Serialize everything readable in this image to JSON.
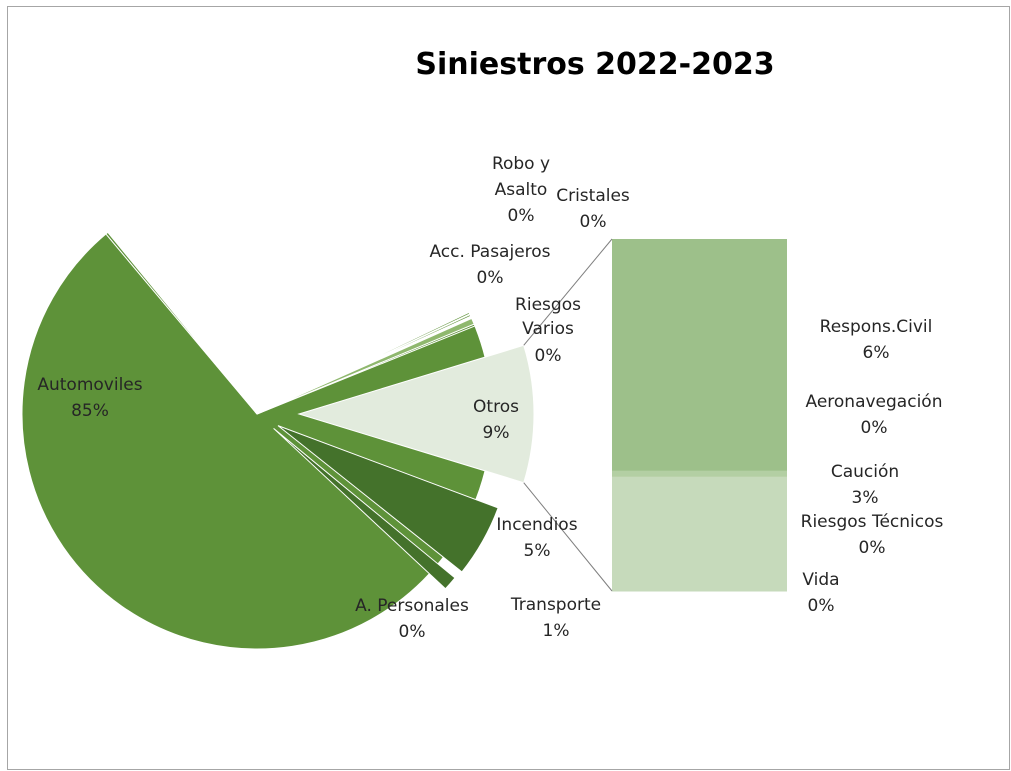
{
  "chart_data": {
    "type": "pie",
    "subtype": "bar-of-pie",
    "title": "Siniestros 2022-2023",
    "pie_slices": [
      {
        "label": "Automoviles",
        "value": 85,
        "display": "85%",
        "color": "#5e9239"
      },
      {
        "label": "Otros",
        "value": 9,
        "display": "9%",
        "color": "#e2ebdd",
        "exploded": true
      },
      {
        "label": "Incendios",
        "value": 5,
        "display": "5%",
        "color": "#44722b",
        "exploded": true
      },
      {
        "label": "Transporte",
        "value": 1,
        "display": "1%",
        "color": "#44722b",
        "exploded": true
      },
      {
        "label": "A. Personales",
        "value": 0,
        "display": "0%",
        "color": "#5e9239"
      },
      {
        "label": "Riesgos Varios",
        "value": 0,
        "display": "0%",
        "color": "#5e9239"
      },
      {
        "label": "Acc. Pasajeros",
        "value": 0,
        "display": "0%",
        "color": "#8fb86e"
      },
      {
        "label": "Robo y Asalto",
        "value": 0,
        "display": "0%",
        "color": "#5e9239"
      },
      {
        "label": "Cristales",
        "value": 0,
        "display": "0%",
        "color": "#5e9239"
      }
    ],
    "bar_segments": [
      {
        "label": "Respons.Civil",
        "value": 6,
        "display": "6%",
        "color": "#9dc08a"
      },
      {
        "label": "Aeronavegación",
        "value": 0,
        "display": "0%",
        "color": "#9dc08a"
      },
      {
        "label": "Caución",
        "value": 3,
        "display": "3%",
        "color": "#c6dabb"
      },
      {
        "label": "Riesgos Técnicos",
        "value": 0,
        "display": "0%",
        "color": "#c6dabb"
      },
      {
        "label": "Vida",
        "value": 0,
        "display": "0%",
        "color": "#c6dabb"
      }
    ],
    "connector_color": "#7f7f7f"
  }
}
